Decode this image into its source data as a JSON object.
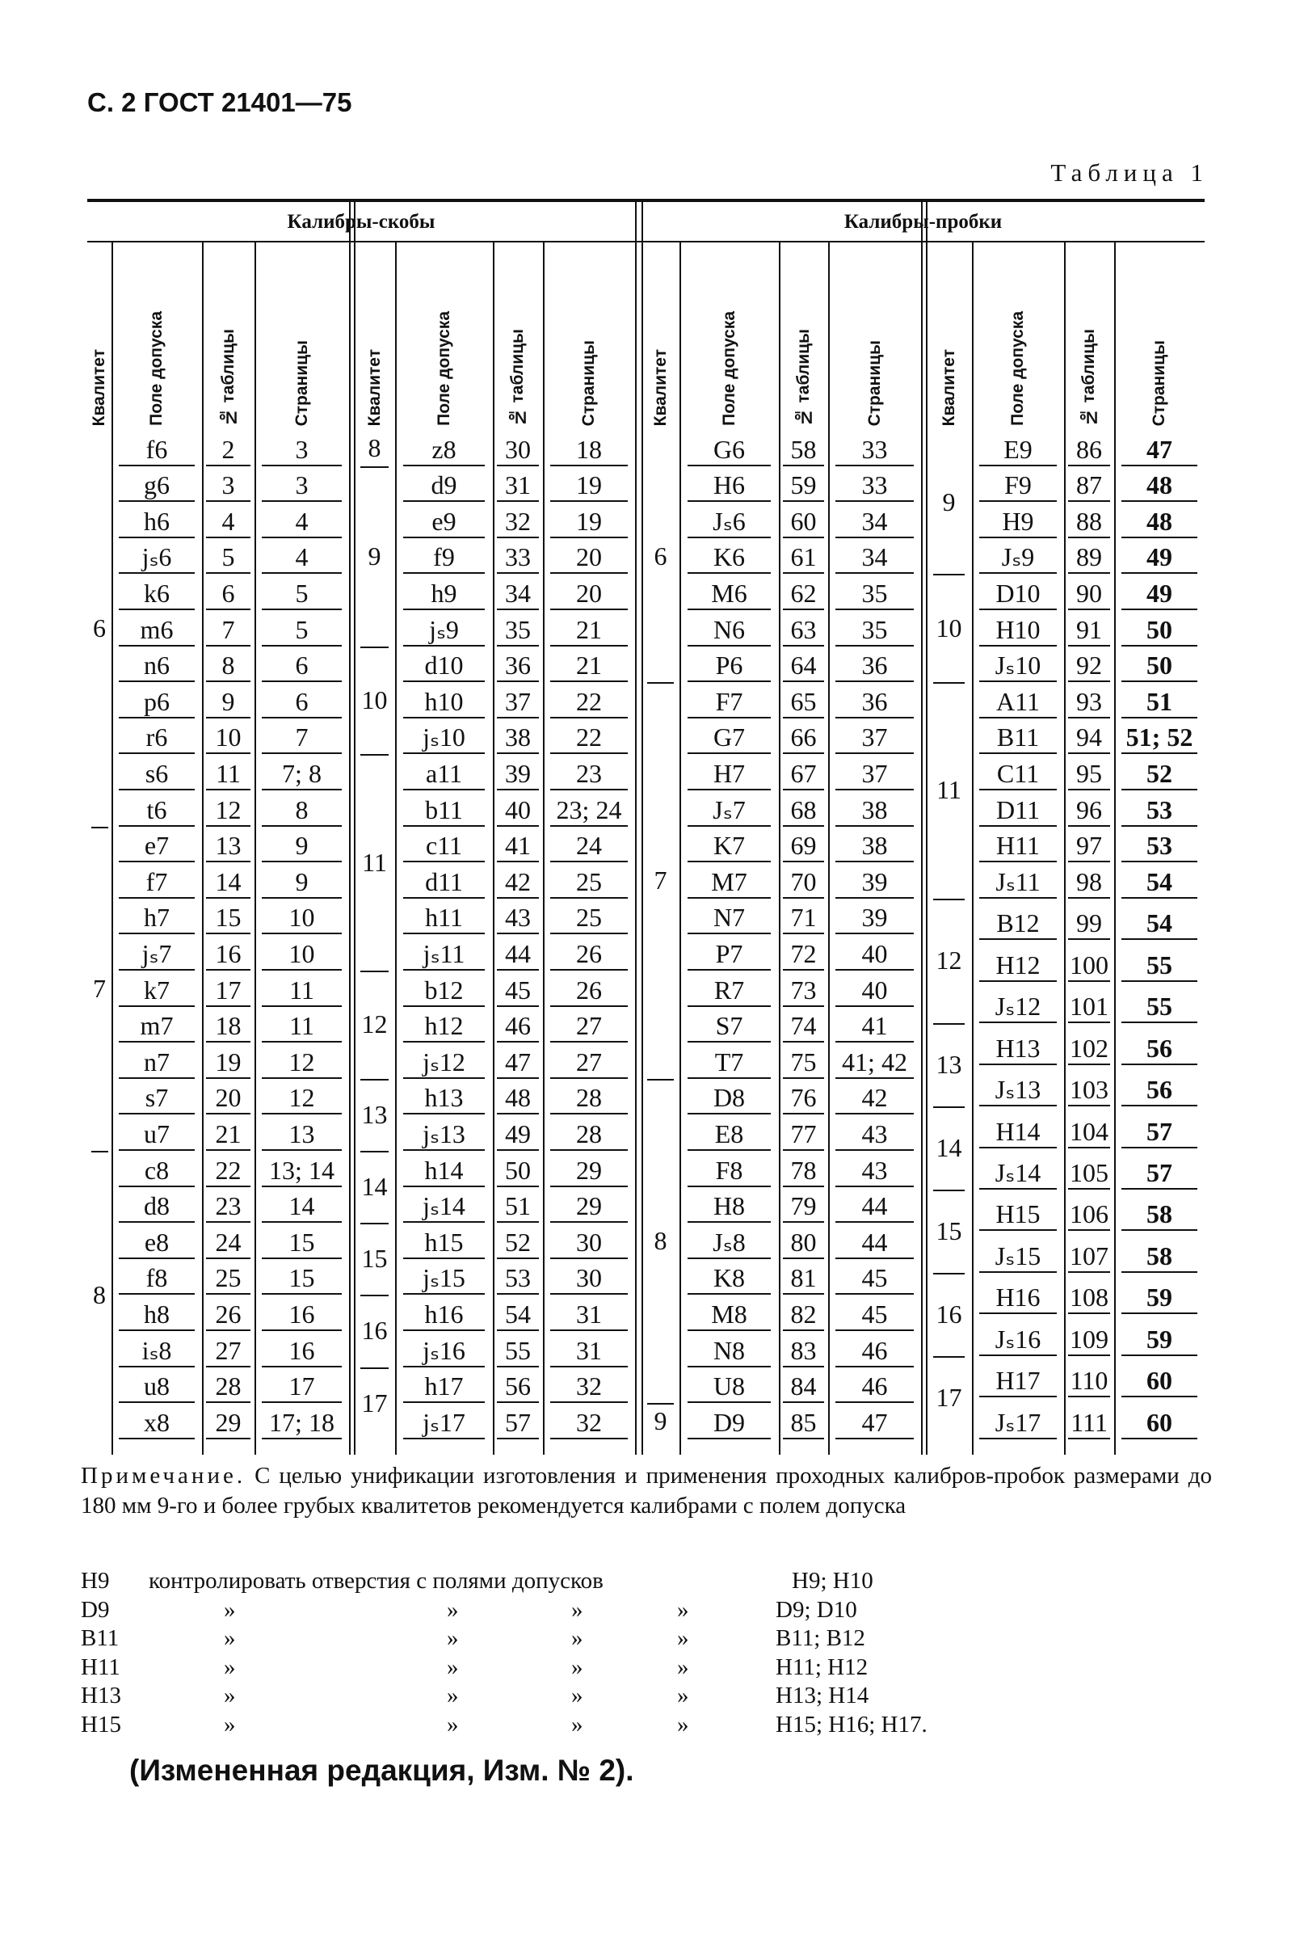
{
  "page_header": "С. 2 ГОСТ 21401—75",
  "table_caption": "Таблица 1",
  "sections": [
    "Калибры-скобы",
    "Калибры-пробки"
  ],
  "column_headers": [
    "Квалитет",
    "Поле допуска",
    "№ таблицы",
    "Страницы"
  ],
  "groups": [
    {
      "qualities": [
        {
          "label": "6",
          "span": 11
        },
        {
          "label": "7",
          "span": 9
        },
        {
          "label": "8",
          "span": 8
        }
      ],
      "rows": [
        [
          "f6",
          "2",
          "3"
        ],
        [
          "g6",
          "3",
          "3"
        ],
        [
          "h6",
          "4",
          "4"
        ],
        [
          "jₛ6",
          "5",
          "4"
        ],
        [
          "k6",
          "6",
          "5"
        ],
        [
          "m6",
          "7",
          "5"
        ],
        [
          "n6",
          "8",
          "6"
        ],
        [
          "p6",
          "9",
          "6"
        ],
        [
          "r6",
          "10",
          "7"
        ],
        [
          "s6",
          "11",
          "7; 8"
        ],
        [
          "t6",
          "12",
          "8"
        ],
        [
          "e7",
          "13",
          "9"
        ],
        [
          "f7",
          "14",
          "9"
        ],
        [
          "h7",
          "15",
          "10"
        ],
        [
          "jₛ7",
          "16",
          "10"
        ],
        [
          "k7",
          "17",
          "11"
        ],
        [
          "m7",
          "18",
          "11"
        ],
        [
          "n7",
          "19",
          "12"
        ],
        [
          "s7",
          "20",
          "12"
        ],
        [
          "u7",
          "21",
          "13"
        ],
        [
          "c8",
          "22",
          "13; 14"
        ],
        [
          "d8",
          "23",
          "14"
        ],
        [
          "e8",
          "24",
          "15"
        ],
        [
          "f8",
          "25",
          "15"
        ],
        [
          "h8",
          "26",
          "16"
        ],
        [
          "iₛ8",
          "27",
          "16"
        ],
        [
          "u8",
          "28",
          "17"
        ],
        [
          "x8",
          "29",
          "17; 18"
        ]
      ]
    },
    {
      "qualities": [
        {
          "label": "8",
          "span": 1
        },
        {
          "label": "9",
          "span": 5
        },
        {
          "label": "10",
          "span": 3
        },
        {
          "label": "11",
          "span": 6
        },
        {
          "label": "12",
          "span": 3
        },
        {
          "label": "13",
          "span": 2
        },
        {
          "label": "14",
          "span": 2
        },
        {
          "label": "15",
          "span": 2
        },
        {
          "label": "16",
          "span": 2
        },
        {
          "label": "17",
          "span": 2
        }
      ],
      "rows": [
        [
          "z8",
          "30",
          "18"
        ],
        [
          "d9",
          "31",
          "19"
        ],
        [
          "e9",
          "32",
          "19"
        ],
        [
          "f9",
          "33",
          "20"
        ],
        [
          "h9",
          "34",
          "20"
        ],
        [
          "jₛ9",
          "35",
          "21"
        ],
        [
          "d10",
          "36",
          "21"
        ],
        [
          "h10",
          "37",
          "22"
        ],
        [
          "jₛ10",
          "38",
          "22"
        ],
        [
          "a11",
          "39",
          "23"
        ],
        [
          "b11",
          "40",
          "23; 24"
        ],
        [
          "c11",
          "41",
          "24"
        ],
        [
          "d11",
          "42",
          "25"
        ],
        [
          "h11",
          "43",
          "25"
        ],
        [
          "jₛ11",
          "44",
          "26"
        ],
        [
          "b12",
          "45",
          "26"
        ],
        [
          "h12",
          "46",
          "27"
        ],
        [
          "jₛ12",
          "47",
          "27"
        ],
        [
          "h13",
          "48",
          "28"
        ],
        [
          "jₛ13",
          "49",
          "28"
        ],
        [
          "h14",
          "50",
          "29"
        ],
        [
          "jₛ14",
          "51",
          "29"
        ],
        [
          "h15",
          "52",
          "30"
        ],
        [
          "jₛ15",
          "53",
          "30"
        ],
        [
          "h16",
          "54",
          "31"
        ],
        [
          "jₛ16",
          "55",
          "31"
        ],
        [
          "h17",
          "56",
          "32"
        ],
        [
          "jₛ17",
          "57",
          "32"
        ]
      ]
    },
    {
      "qualities": [
        {
          "label": "6",
          "span": 7
        },
        {
          "label": "7",
          "span": 11
        },
        {
          "label": "8",
          "span": 9
        },
        {
          "label": "9",
          "span": 1
        }
      ],
      "rows": [
        [
          "G6",
          "58",
          "33"
        ],
        [
          "H6",
          "59",
          "33"
        ],
        [
          "Jₛ6",
          "60",
          "34"
        ],
        [
          "K6",
          "61",
          "34"
        ],
        [
          "M6",
          "62",
          "35"
        ],
        [
          "N6",
          "63",
          "35"
        ],
        [
          "P6",
          "64",
          "36"
        ],
        [
          "F7",
          "65",
          "36"
        ],
        [
          "G7",
          "66",
          "37"
        ],
        [
          "H7",
          "67",
          "37"
        ],
        [
          "Jₛ7",
          "68",
          "38"
        ],
        [
          "K7",
          "69",
          "38"
        ],
        [
          "M7",
          "70",
          "39"
        ],
        [
          "N7",
          "71",
          "39"
        ],
        [
          "P7",
          "72",
          "40"
        ],
        [
          "R7",
          "73",
          "40"
        ],
        [
          "S7",
          "74",
          "41"
        ],
        [
          "T7",
          "75",
          "41; 42"
        ],
        [
          "D8",
          "76",
          "42"
        ],
        [
          "E8",
          "77",
          "43"
        ],
        [
          "F8",
          "78",
          "43"
        ],
        [
          "H8",
          "79",
          "44"
        ],
        [
          "Jₛ8",
          "80",
          "44"
        ],
        [
          "K8",
          "81",
          "45"
        ],
        [
          "M8",
          "82",
          "45"
        ],
        [
          "N8",
          "83",
          "46"
        ],
        [
          "U8",
          "84",
          "46"
        ],
        [
          "D9",
          "85",
          "47"
        ]
      ]
    },
    {
      "qualities": [
        {
          "label": "9",
          "span": 4
        },
        {
          "label": "10",
          "span": 3
        },
        {
          "label": "11",
          "span": 6
        },
        {
          "label": "12",
          "span": 3
        },
        {
          "label": "13",
          "span": 2
        },
        {
          "label": "14",
          "span": 2
        },
        {
          "label": "15",
          "span": 2
        },
        {
          "label": "16",
          "span": 2
        },
        {
          "label": "17",
          "span": 2
        }
      ],
      "rows": [
        [
          "E9",
          "86",
          "47"
        ],
        [
          "F9",
          "87",
          "48"
        ],
        [
          "H9",
          "88",
          "48"
        ],
        [
          "Jₛ9",
          "89",
          "49"
        ],
        [
          "D10",
          "90",
          "49"
        ],
        [
          "H10",
          "91",
          "50"
        ],
        [
          "Jₛ10",
          "92",
          "50"
        ],
        [
          "A11",
          "93",
          "51"
        ],
        [
          "B11",
          "94",
          "51; 52"
        ],
        [
          "C11",
          "95",
          "52"
        ],
        [
          "D11",
          "96",
          "53"
        ],
        [
          "H11",
          "97",
          "53"
        ],
        [
          "Jₛ11",
          "98",
          "54"
        ],
        [
          "B12",
          "99",
          "54"
        ],
        [
          "H12",
          "100",
          "55"
        ],
        [
          "Jₛ12",
          "101",
          "55"
        ],
        [
          "H13",
          "102",
          "56"
        ],
        [
          "Jₛ13",
          "103",
          "56"
        ],
        [
          "H14",
          "104",
          "57"
        ],
        [
          "Jₛ14",
          "105",
          "57"
        ],
        [
          "H15",
          "106",
          "58"
        ],
        [
          "Jₛ15",
          "107",
          "58"
        ],
        [
          "H16",
          "108",
          "59"
        ],
        [
          "Jₛ16",
          "109",
          "59"
        ],
        [
          "H17",
          "110",
          "60"
        ],
        [
          "Jₛ17",
          "111",
          "60"
        ]
      ]
    }
  ],
  "note": {
    "label": "Примечание.",
    "text": "С целью унификации изготовления и применения проходных калибров-пробок размерами до 180 мм 9-го и более грубых квалитетов рекомендуется калибрами с полем допуска",
    "rows": [
      {
        "gauge": "H9",
        "text": "контролировать отверстия с полями допусков",
        "holes": "H9; H10"
      },
      {
        "gauge": "D9",
        "ditto": [
          "»",
          "»",
          "»",
          "»"
        ],
        "holes": "D9; D10"
      },
      {
        "gauge": "B11",
        "ditto": [
          "»",
          "»",
          "»",
          "»"
        ],
        "holes": "B11; B12"
      },
      {
        "gauge": "H11",
        "ditto": [
          "»",
          "»",
          "»",
          "»"
        ],
        "holes": "H11; H12"
      },
      {
        "gauge": "H13",
        "ditto": [
          "»",
          "»",
          "»",
          "»"
        ],
        "holes": "H13; H14"
      },
      {
        "gauge": "H15",
        "ditto": [
          "»",
          "»",
          "»",
          "»"
        ],
        "holes": "H15; H16; H17."
      }
    ]
  },
  "amendment": "(Измененная редакция, Изм. № 2)."
}
